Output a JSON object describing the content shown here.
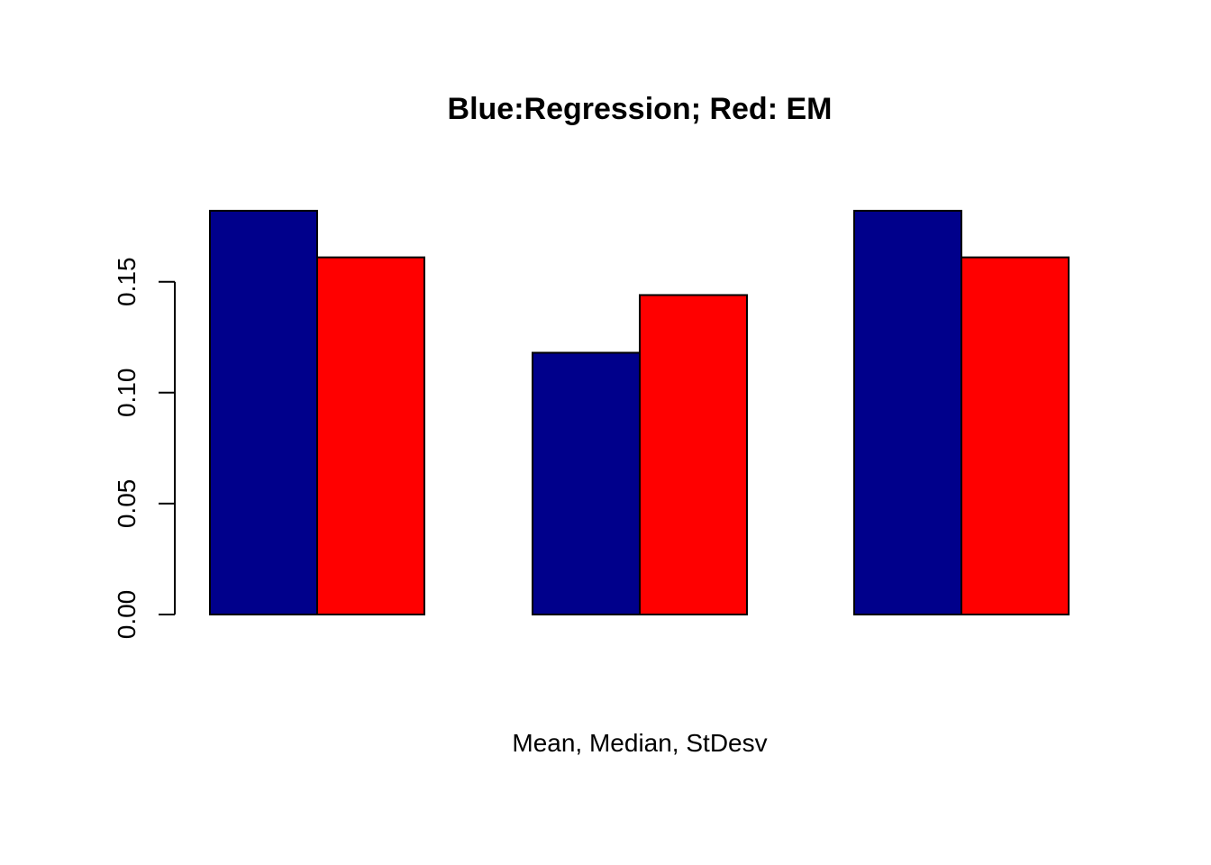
{
  "chart_data": {
    "type": "bar",
    "title": "Blue:Regression; Red: EM",
    "xlabel": "Mean, Median, StDesv",
    "ylabel": "",
    "categories": [
      "",
      "",
      ""
    ],
    "series": [
      {
        "values": [
          0.182,
          0.118,
          0.182
        ],
        "color": "#00008B"
      },
      {
        "values": [
          0.161,
          0.144,
          0.161
        ],
        "color": "#FF0000"
      }
    ],
    "yticks": [
      0.0,
      0.05,
      0.1,
      0.15
    ],
    "ytick_labels": [
      "0.00",
      "0.05",
      "0.10",
      "0.15"
    ],
    "ylim": [
      0,
      0.182
    ],
    "grid": false,
    "legend": "none",
    "bar_border_color": "#000000"
  }
}
